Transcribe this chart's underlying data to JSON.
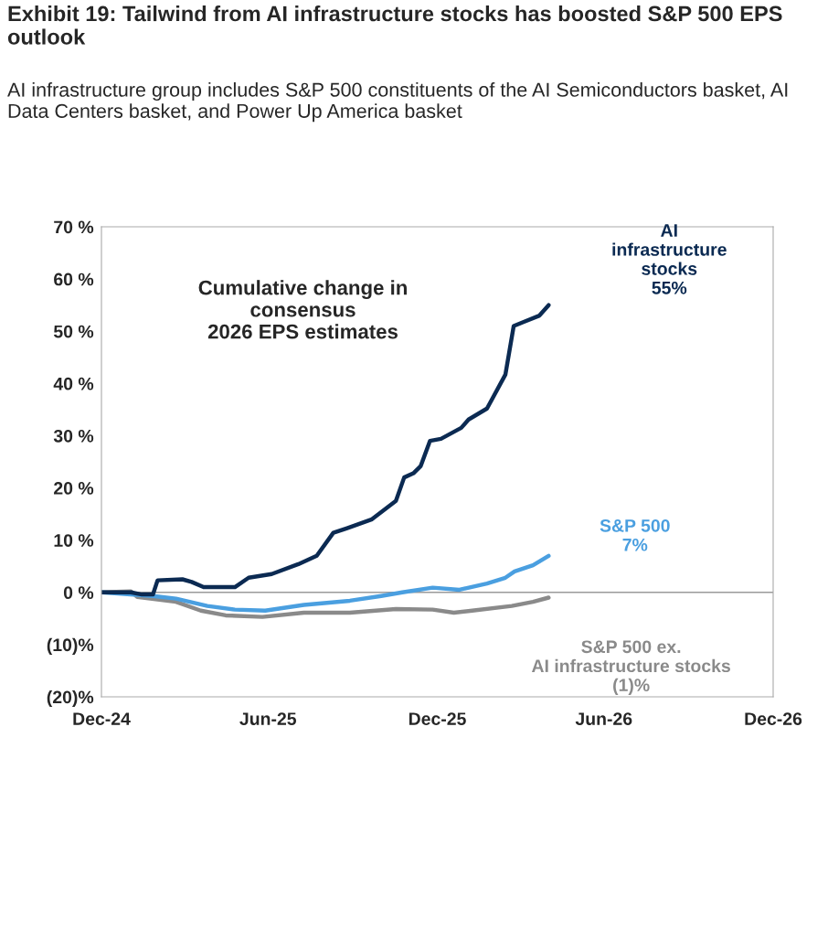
{
  "chart_data": {
    "type": "line",
    "title": "Exhibit 19: Tailwind from AI infrastructure stocks has boosted S&P 500 EPS outlook",
    "subtitle": "AI infrastructure group includes S&P 500 constituents of the AI Semiconductors basket, AI Data Centers basket, and Power Up America basket",
    "annotations": [
      "Cumulative change in\nconsensus\n2026 EPS estimates"
    ],
    "xlim": [
      "2024-12-31",
      "2026-12-31"
    ],
    "xticks": [
      {
        "value": "2024-12-31",
        "label": "Dec-24"
      },
      {
        "value": "2025-06-30",
        "label": "Jun-25"
      },
      {
        "value": "2025-12-31",
        "label": "Dec-25"
      },
      {
        "value": "2026-06-30",
        "label": "Jun-26"
      },
      {
        "value": "2026-12-31",
        "label": "Dec-26"
      }
    ],
    "ylim": [
      -20,
      70
    ],
    "yticks": [
      {
        "value": -20,
        "label": "(20)%"
      },
      {
        "value": -10,
        "label": "(10)%"
      },
      {
        "value": 0,
        "label": "0 %"
      },
      {
        "value": 10,
        "label": "10 %"
      },
      {
        "value": 20,
        "label": "20 %"
      },
      {
        "value": 30,
        "label": "30 %"
      },
      {
        "value": 40,
        "label": "40 %"
      },
      {
        "value": 50,
        "label": "50 %"
      },
      {
        "value": 60,
        "label": "60 %"
      },
      {
        "value": 70,
        "label": "70 %"
      }
    ],
    "ref_lines": [
      {
        "axis": "y",
        "value": 0,
        "color": "#9a9a9a"
      }
    ],
    "grid": false,
    "legend": false,
    "marker": "none",
    "line_style": "solid",
    "series": [
      {
        "name": "S&P 500 ex.\nAI infrastructure stocks\n(1)%",
        "color": "#8a8a8a",
        "x": [
          "2024-12-31",
          "2025-02-01",
          "2025-02-08",
          "2025-03-22",
          "2025-04-18",
          "2025-05-15",
          "2025-06-24",
          "2025-08-08",
          "2025-09-27",
          "2025-11-16",
          "2025-12-26",
          "2026-01-18",
          "2026-02-07",
          "2026-03-22",
          "2026-04-14",
          "2026-05-01"
        ],
        "values": [
          0,
          0.2,
          -0.9,
          -1.8,
          -3.5,
          -4.4,
          -4.7,
          -3.9,
          -3.9,
          -3.2,
          -3.3,
          -3.9,
          -3.5,
          -2.6,
          -1.8,
          -1
        ]
      },
      {
        "name": "S&P 500\n7%",
        "color": "#4a9fe0",
        "x": [
          "2024-12-31",
          "2025-02-25",
          "2025-03-22",
          "2025-04-25",
          "2025-05-25",
          "2025-06-27",
          "2025-08-08",
          "2025-09-27",
          "2025-10-31",
          "2025-11-23",
          "2025-12-26",
          "2026-01-24",
          "2026-02-23",
          "2026-03-15",
          "2026-03-25",
          "2026-04-14",
          "2026-05-01"
        ],
        "values": [
          0,
          -0.7,
          -1.2,
          -2.6,
          -3.3,
          -3.5,
          -2.4,
          -1.6,
          -0.7,
          0,
          0.9,
          0.5,
          1.7,
          2.8,
          4,
          5.2,
          7
        ]
      },
      {
        "name": "AI\ninfrastructure\nstocks\n55%",
        "color": "#0b2a52",
        "x": [
          "2024-12-31",
          "2025-02-01",
          "2025-02-13",
          "2025-02-25",
          "2025-03-02",
          "2025-03-29",
          "2025-04-08",
          "2025-04-21",
          "2025-05-25",
          "2025-06-09",
          "2025-07-04",
          "2025-08-02",
          "2025-08-22",
          "2025-09-09",
          "2025-09-24",
          "2025-10-21",
          "2025-11-16",
          "2025-11-25",
          "2025-12-05",
          "2025-12-13",
          "2025-12-23",
          "2026-01-04",
          "2026-01-26",
          "2026-02-03",
          "2026-02-23",
          "2026-03-15",
          "2026-03-24",
          "2026-04-04",
          "2026-04-21",
          "2026-05-01"
        ],
        "values": [
          0,
          0,
          -0.4,
          -0.4,
          2.3,
          2.5,
          2,
          1,
          1,
          2.8,
          3.5,
          5.4,
          7,
          11.4,
          12.3,
          14,
          17.5,
          22,
          22.8,
          24.2,
          29,
          29.4,
          31.5,
          33.1,
          35.2,
          41.7,
          51,
          51.8,
          53,
          55
        ]
      }
    ]
  }
}
